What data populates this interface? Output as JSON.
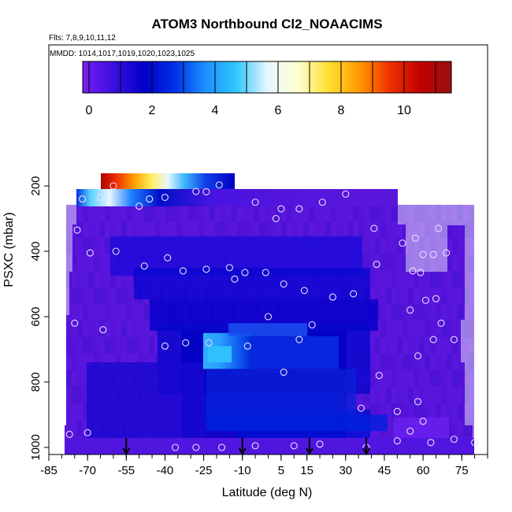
{
  "chart_data": {
    "type": "heatmap",
    "title": "ATOM3 Northbound Cl2_NOAACIMS",
    "notes": {
      "flights": "Flts: 7,8,9,10,11,12",
      "dates": "MMDD: 1014,1017,1019,1020,1023,1025"
    },
    "xlabel": "Latitude (deg N)",
    "ylabel": "PSXC (mbar)",
    "xlim": [
      -85,
      85
    ],
    "ylim": [
      1000,
      50
    ],
    "y_reversed": true,
    "grid": false,
    "x_tick_labels": [
      "-85",
      "-70",
      "-55",
      "-40",
      "-25",
      "-10",
      "5",
      "15",
      "30",
      "45",
      "60",
      "75"
    ],
    "y_tick_labels": [
      "200",
      "400",
      "600",
      "800",
      "1000"
    ],
    "colorbar": {
      "location": "top",
      "range": [
        -0.2,
        11.5
      ],
      "tick_labels": [
        "0",
        "2",
        "4",
        "6",
        "8",
        "10"
      ],
      "colors": [
        "#7a1ef0",
        "#3a10e0",
        "#0000c8",
        "#0030e8",
        "#1a90ff",
        "#30c8ff",
        "#e6f6ff",
        "#ffffd0",
        "#ffe030",
        "#ff9a00",
        "#f03000",
        "#c00000",
        "#9a1010"
      ]
    },
    "background_color": "#5a16dc",
    "pressure_layers": [
      {
        "lat_range": [
          -66,
          -22
        ],
        "p_range": [
          160,
          220
        ],
        "shading": "range 0-11 from south to north"
      },
      {
        "lat_range": [
          -75,
          47
        ],
        "p_range": [
          220,
          260
        ],
        "shading": "1.5-4 near -70, about 1 elsewhere"
      },
      {
        "lat_range": [
          -30,
          5
        ],
        "p_range": [
          650,
          760
        ],
        "shading": "up to about 3.2"
      },
      {
        "lat_range": [
          -30,
          40
        ],
        "p_range": [
          600,
          950
        ],
        "shading": "about 1.5-2"
      }
    ],
    "measurement_points": [
      {
        "lat": -72,
        "p": 240
      },
      {
        "lat": -65,
        "p": 235
      },
      {
        "lat": -60,
        "p": 200
      },
      {
        "lat": -50,
        "p": 262
      },
      {
        "lat": -46,
        "p": 240
      },
      {
        "lat": -40,
        "p": 235
      },
      {
        "lat": -28,
        "p": 217
      },
      {
        "lat": -24,
        "p": 218
      },
      {
        "lat": -19,
        "p": 197
      },
      {
        "lat": -5,
        "p": 250
      },
      {
        "lat": 5,
        "p": 270
      },
      {
        "lat": 3,
        "p": 300
      },
      {
        "lat": 12,
        "p": 270
      },
      {
        "lat": 21,
        "p": 250
      },
      {
        "lat": 30,
        "p": 225
      },
      {
        "lat": -74,
        "p": 335
      },
      {
        "lat": -69,
        "p": 405
      },
      {
        "lat": -59,
        "p": 400
      },
      {
        "lat": -48,
        "p": 445
      },
      {
        "lat": -39,
        "p": 420
      },
      {
        "lat": -33,
        "p": 460
      },
      {
        "lat": -24,
        "p": 455
      },
      {
        "lat": -15,
        "p": 450
      },
      {
        "lat": -13,
        "p": 485
      },
      {
        "lat": -9,
        "p": 465
      },
      {
        "lat": -1,
        "p": 465
      },
      {
        "lat": 6,
        "p": 500
      },
      {
        "lat": 14,
        "p": 520
      },
      {
        "lat": 25,
        "p": 540
      },
      {
        "lat": 42,
        "p": 440
      },
      {
        "lat": 52,
        "p": 375
      },
      {
        "lat": 57,
        "p": 360
      },
      {
        "lat": 60,
        "p": 410
      },
      {
        "lat": 64,
        "p": 410
      },
      {
        "lat": 66,
        "p": 330
      },
      {
        "lat": 69,
        "p": 405
      },
      {
        "lat": 56,
        "p": 460
      },
      {
        "lat": 59,
        "p": 465
      },
      {
        "lat": 61,
        "p": 550
      },
      {
        "lat": 65,
        "p": 545
      },
      {
        "lat": 55,
        "p": 580
      },
      {
        "lat": 67,
        "p": 620
      },
      {
        "lat": 64,
        "p": 670
      },
      {
        "lat": 72,
        "p": 670
      },
      {
        "lat": 58,
        "p": 720
      },
      {
        "lat": 43,
        "p": 780
      },
      {
        "lat": 33,
        "p": 530
      },
      {
        "lat": 41,
        "p": 330
      },
      {
        "lat": -75,
        "p": 620
      },
      {
        "lat": -64,
        "p": 640
      },
      {
        "lat": -40,
        "p": 690
      },
      {
        "lat": -32,
        "p": 680
      },
      {
        "lat": -23,
        "p": 680
      },
      {
        "lat": -8,
        "p": 690
      },
      {
        "lat": 0,
        "p": 600
      },
      {
        "lat": 12,
        "p": 670
      },
      {
        "lat": 17,
        "p": 625
      },
      {
        "lat": 6,
        "p": 770
      },
      {
        "lat": 36,
        "p": 880
      },
      {
        "lat": 50,
        "p": 890
      },
      {
        "lat": 58,
        "p": 860
      },
      {
        "lat": 60,
        "p": 920
      },
      {
        "lat": 55,
        "p": 950
      },
      {
        "lat": -77,
        "p": 960
      },
      {
        "lat": -70,
        "p": 955
      },
      {
        "lat": -28,
        "p": 1000
      },
      {
        "lat": -5,
        "p": 995
      },
      {
        "lat": 10,
        "p": 995
      },
      {
        "lat": 20,
        "p": 990
      },
      {
        "lat": 38,
        "p": 1000
      },
      {
        "lat": 50,
        "p": 980
      },
      {
        "lat": 63,
        "p": 985
      },
      {
        "lat": 72,
        "p": 975
      },
      {
        "lat": 80,
        "p": 985
      },
      {
        "lat": -36,
        "p": 1000
      },
      {
        "lat": -18,
        "p": 1000
      }
    ],
    "arrows": [
      {
        "lat": -55,
        "p": 1005
      },
      {
        "lat": -10,
        "p": 1005
      },
      {
        "lat": 16,
        "p": 1005
      },
      {
        "lat": 38,
        "p": 1005
      }
    ]
  }
}
